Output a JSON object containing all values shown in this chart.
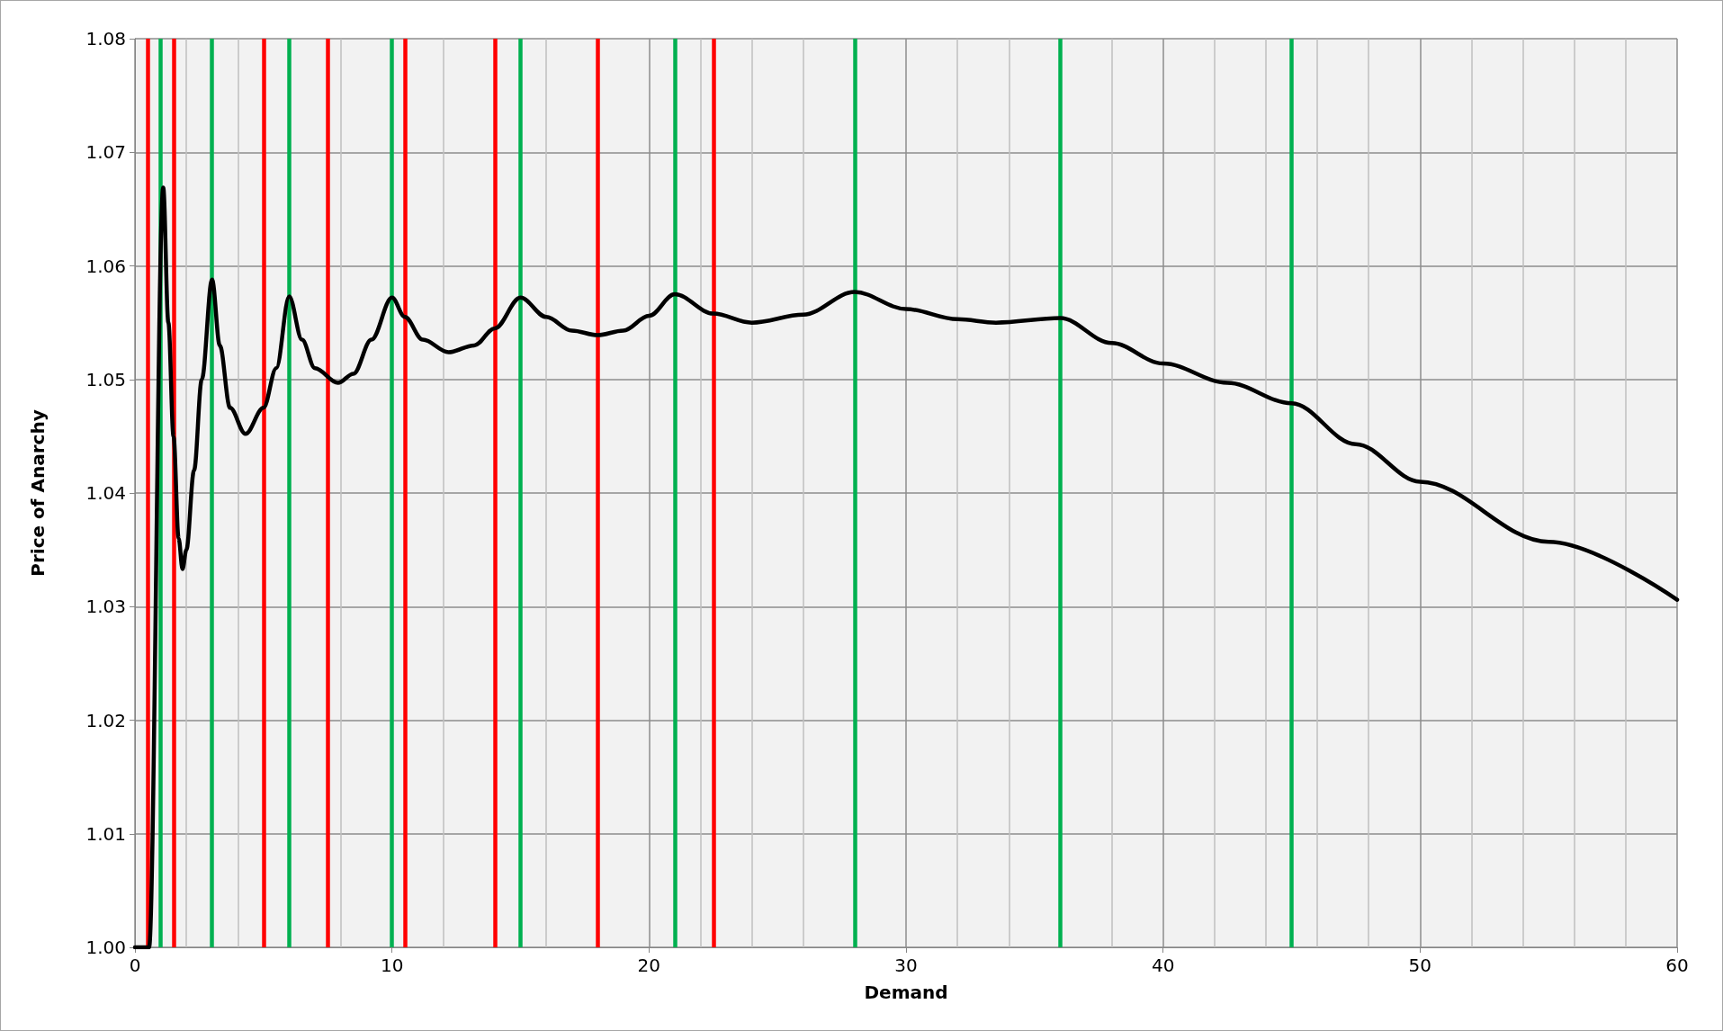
{
  "chart_data": {
    "type": "line",
    "xlabel": "Demand",
    "ylabel": "Price of Anarchy",
    "x": [
      0,
      0.55,
      1.1,
      1.3,
      1.5,
      1.7,
      1.85,
      2.0,
      2.3,
      2.6,
      3,
      3.3,
      3.7,
      4.3,
      5,
      5.5,
      6,
      6.5,
      7,
      7.9,
      8.5,
      9.2,
      10,
      10.5,
      11.2,
      12.2,
      13.2,
      14,
      15,
      16,
      17,
      18,
      19,
      20,
      21,
      22.5,
      24,
      26,
      28,
      30,
      32,
      33.5,
      36,
      38,
      40,
      42.5,
      45,
      47.5,
      50,
      55,
      60
    ],
    "series": [
      {
        "color": "#000000",
        "values": [
          1.0,
          1.0,
          1.0669,
          1.055,
          1.045,
          1.036,
          1.0333,
          1.035,
          1.042,
          1.05,
          1.0588,
          1.053,
          1.0475,
          1.0452,
          1.0475,
          1.051,
          1.0573,
          1.0535,
          1.051,
          1.0497,
          1.0505,
          1.0535,
          1.0572,
          1.0555,
          1.0535,
          1.0524,
          1.053,
          1.0545,
          1.0572,
          1.0555,
          1.0543,
          1.0539,
          1.0543,
          1.0556,
          1.0575,
          1.0558,
          1.055,
          1.0557,
          1.0577,
          1.0562,
          1.0553,
          1.055,
          1.0554,
          1.0532,
          1.0514,
          1.0497,
          1.0479,
          1.0443,
          1.041,
          1.0357,
          1.0306
        ]
      }
    ],
    "xlim": [
      0,
      60
    ],
    "xticks": [
      0,
      10,
      20,
      30,
      40,
      50,
      60
    ],
    "ylim": [
      1.0,
      1.08
    ],
    "yticks": [
      {
        "value": 1.0,
        "label": "1.00"
      },
      1.01,
      1.02,
      1.03,
      1.04,
      1.05,
      1.06,
      1.07,
      1.08
    ],
    "grid": true,
    "marker": "none",
    "line_style": "solid",
    "ref_lines": [
      {
        "axis": "x",
        "value": 0.5,
        "color": "#ff0000"
      },
      {
        "axis": "x",
        "value": 1.5,
        "color": "#ff0000"
      },
      {
        "axis": "x",
        "value": 5,
        "color": "#ff0000"
      },
      {
        "axis": "x",
        "value": 7.5,
        "color": "#ff0000"
      },
      {
        "axis": "x",
        "value": 10.5,
        "color": "#ff0000"
      },
      {
        "axis": "x",
        "value": 14,
        "color": "#ff0000"
      },
      {
        "axis": "x",
        "value": 18,
        "color": "#ff0000"
      },
      {
        "axis": "x",
        "value": 22.5,
        "color": "#ff0000"
      },
      {
        "axis": "x",
        "value": 1,
        "color": "#00b050"
      },
      {
        "axis": "x",
        "value": 3,
        "color": "#00b050"
      },
      {
        "axis": "x",
        "value": 6,
        "color": "#00b050"
      },
      {
        "axis": "x",
        "value": 10,
        "color": "#00b050"
      },
      {
        "axis": "x",
        "value": 15,
        "color": "#00b050"
      },
      {
        "axis": "x",
        "value": 21,
        "color": "#00b050"
      },
      {
        "axis": "x",
        "value": 28,
        "color": "#00b050"
      },
      {
        "axis": "x",
        "value": 36,
        "color": "#00b050"
      },
      {
        "axis": "x",
        "value": 45,
        "color": "#00b050"
      }
    ]
  }
}
